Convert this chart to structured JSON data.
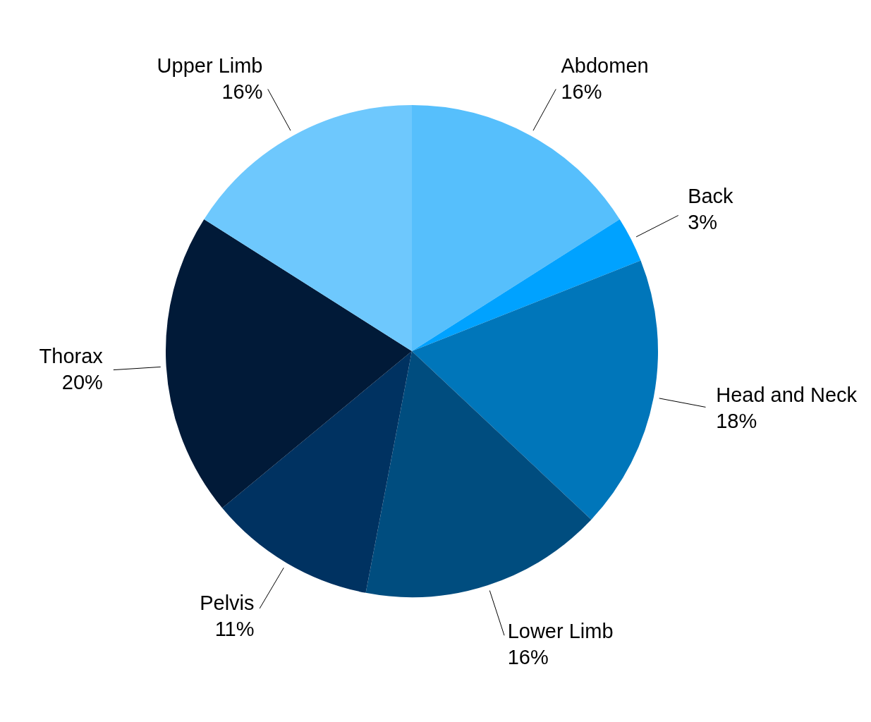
{
  "chart_data": {
    "type": "pie",
    "categories": [
      "Abdomen",
      "Back",
      "Head and Neck",
      "Lower Limb",
      "Pelvis",
      "Thorax",
      "Upper Limb"
    ],
    "values": [
      16,
      3,
      18,
      16,
      11,
      20,
      16
    ],
    "value_labels": [
      "16%",
      "3%",
      "18%",
      "16%",
      "11%",
      "20%",
      "16%"
    ],
    "colors": [
      "#56bffc",
      "#00a2ff",
      "#0076ba",
      "#004d7f",
      "#003261",
      "#011a38",
      "#6ec8fd"
    ],
    "legend": false
  }
}
